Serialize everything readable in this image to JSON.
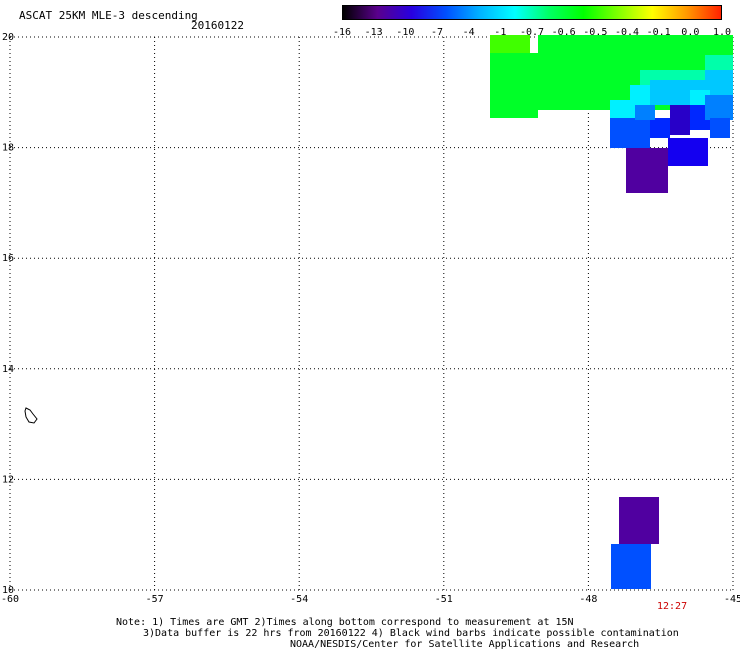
{
  "title": "ASCAT 25KM MLE-3 descending",
  "date": "20160122",
  "colorbar": {
    "labels": [
      "-16",
      "-13",
      "-10",
      "-7",
      "-4",
      "-1",
      "-0.7",
      "-0.6",
      "-0.5",
      "-0.4",
      "-0.1",
      "0.0",
      "1.0"
    ],
    "colors": [
      "#000000",
      "#5a008c",
      "#2800e0",
      "#0050ff",
      "#00b4ff",
      "#00ffff",
      "#00ff64",
      "#00ff00",
      "#80ff00",
      "#ffff00",
      "#ff9900",
      "#ff2200"
    ]
  },
  "map": {
    "lon_range": [
      -60,
      -45
    ],
    "lat_range": [
      10,
      20
    ],
    "lon_ticks": [
      "-60",
      "-57",
      "-54",
      "-51",
      "-48",
      "-45"
    ],
    "lat_ticks": [
      "20",
      "18",
      "16",
      "14",
      "12",
      "10"
    ],
    "time_label": "12:27"
  },
  "notes": {
    "line1": "Note: 1) Times are GMT 2)Times along bottom correspond to measurement at 15N",
    "line2": "3)Data buffer is 22 hrs from 20160122 4) Black wind barbs indicate possible contamination",
    "line3": "NOAA/NESDIS/Center for Satellite Applications and Research"
  }
}
